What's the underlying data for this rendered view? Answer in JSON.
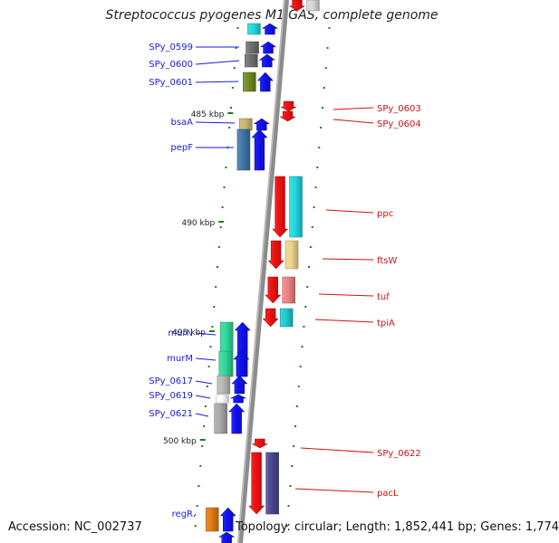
{
  "title": "Streptococcus pyogenes M1 GAS, complete genome",
  "footer": {
    "accession": "Accession: NC_002737",
    "summary": "Topology: circular; Length: 1,852,441 bp; Genes: 1,774"
  },
  "colors": {
    "forward_label": "#1a1adc",
    "reverse_label": "#d01010",
    "backbone": "#8c8c8c",
    "tick": "#1f7a1f"
  },
  "ruler": [
    {
      "label": "485 kbp"
    },
    {
      "label": "490 kbp"
    },
    {
      "label": "495 kbp"
    },
    {
      "label": "500 kbp"
    }
  ],
  "forward_genes": [
    {
      "name": "SPy_0599",
      "color": "#6e6e6e"
    },
    {
      "name": "SPy_0600",
      "color": "#707070"
    },
    {
      "name": "SPy_0601",
      "color": "#6f8a22"
    },
    {
      "name": "bsaA",
      "color": "#c9b66e"
    },
    {
      "name": "pepF",
      "color": "#3e76a8"
    },
    {
      "name": "murN",
      "color": "#2fd99a"
    },
    {
      "name": "murM",
      "color": "#2fd99a"
    },
    {
      "name": "SPy_0617",
      "color": "#b8b8b8"
    },
    {
      "name": "SPy_0619",
      "color": "#ffffff"
    },
    {
      "name": "SPy_0621",
      "color": "#a8a8a8"
    },
    {
      "name": "regR",
      "color": "#e07b10"
    }
  ],
  "reverse_genes": [
    {
      "name": "SPy_0603",
      "color": "#ffffff"
    },
    {
      "name": "SPy_0604",
      "color": "#ffffff"
    },
    {
      "name": "ppc",
      "color": "#1fd7e0"
    },
    {
      "name": "ftsW",
      "color": "#eed58a"
    },
    {
      "name": "tuf",
      "color": "#ee8080"
    },
    {
      "name": "tpiA",
      "color": "#1fcad0"
    },
    {
      "name": "SPy_0622",
      "color": "#ffffff"
    },
    {
      "name": "pacL",
      "color": "#4a4690"
    }
  ]
}
